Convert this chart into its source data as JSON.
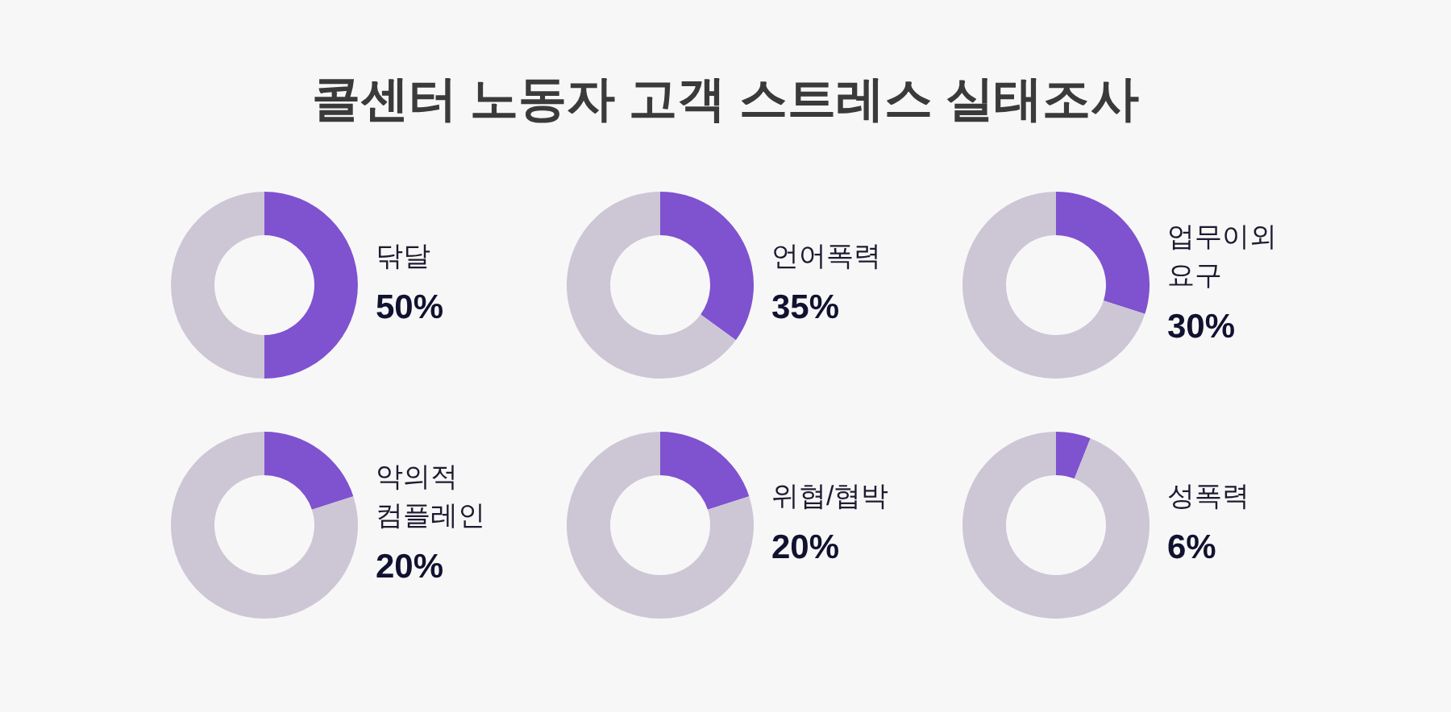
{
  "chart_data": [
    {
      "type": "other",
      "title": "콜센터 노동자 고객 스트레스 실태조사"
    },
    {
      "type": "donut",
      "title": "닦달",
      "subtitle": "50%",
      "categories": [
        null,
        null
      ],
      "values": [
        50,
        50
      ],
      "colors": [
        "#7f52cf",
        "#cdc6d5"
      ]
    },
    {
      "type": "donut",
      "title": "언어폭력",
      "subtitle": "35%",
      "categories": [
        null,
        null
      ],
      "values": [
        35,
        65
      ],
      "colors": [
        "#7f52cf",
        "#cdc6d5"
      ]
    },
    {
      "type": "donut",
      "title": "업무이외 요구",
      "subtitle": "30%",
      "categories": [
        null,
        null
      ],
      "values": [
        30,
        70
      ],
      "colors": [
        "#7f52cf",
        "#cdc6d5"
      ]
    },
    {
      "type": "donut",
      "title": "악의적 컴플레인",
      "subtitle": "20%",
      "categories": [
        null,
        null
      ],
      "values": [
        20,
        80
      ],
      "colors": [
        "#7f52cf",
        "#cdc6d5"
      ]
    },
    {
      "type": "donut",
      "title": "위협/협박",
      "subtitle": "20%",
      "categories": [
        null,
        null
      ],
      "values": [
        20,
        80
      ],
      "colors": [
        "#7f52cf",
        "#cdc6d5"
      ]
    },
    {
      "type": "donut",
      "title": "성폭력",
      "subtitle": "6%",
      "categories": [
        null,
        null
      ],
      "values": [
        6,
        94
      ],
      "colors": [
        "#7f52cf",
        "#cdc6d5"
      ]
    }
  ]
}
